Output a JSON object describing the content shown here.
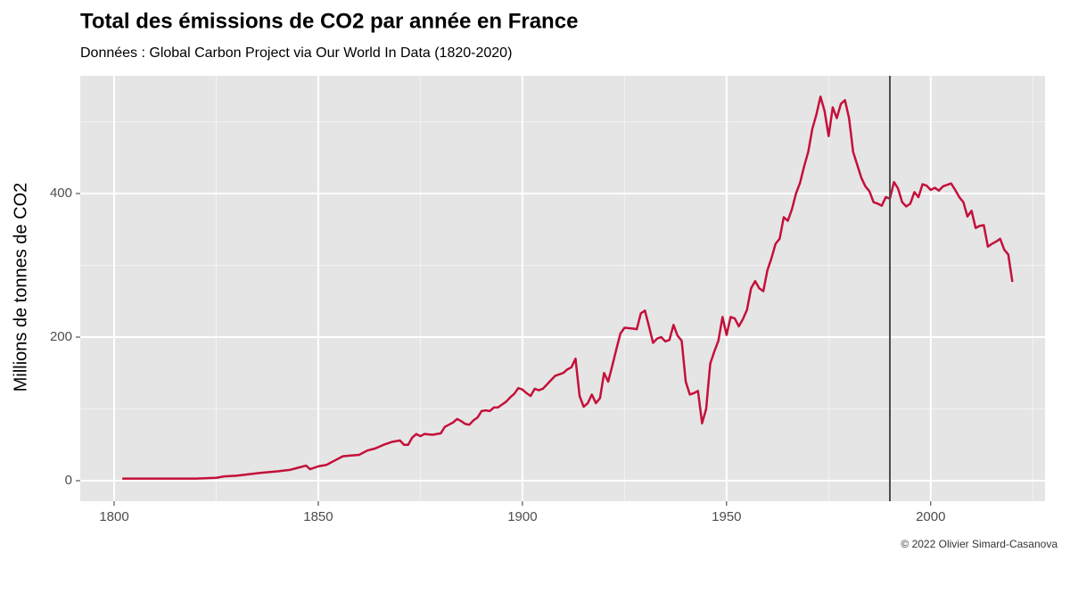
{
  "chart_data": {
    "type": "line",
    "title": "Total des émissions de CO2 par année en France",
    "subtitle": "Données : Global Carbon Project via Our World In Data (1820-2020)",
    "y_label": "Millions de tonnes de CO2",
    "caption": "© 2022 Olivier Simard-Casanova",
    "xlim": [
      1791.7,
      2028
    ],
    "ylim": [
      -28.6,
      564
    ],
    "xticks": [
      1800,
      1850,
      1900,
      1950,
      2000
    ],
    "yticks": [
      0,
      200,
      400
    ],
    "xminor": [
      1825,
      1875,
      1925,
      1975,
      2025
    ],
    "yminor": [
      100,
      300,
      500
    ],
    "grid": true,
    "vline": 1990,
    "vline_color": "#4d4d4d",
    "series": [
      {
        "color": "#c4103a",
        "x": [
          1802,
          1810,
          1815,
          1820,
          1825,
          1827,
          1830,
          1833,
          1836,
          1840,
          1843,
          1845,
          1847,
          1848,
          1850,
          1852,
          1854,
          1856,
          1858,
          1860,
          1862,
          1864,
          1866,
          1868,
          1870,
          1871,
          1872,
          1873,
          1874,
          1875,
          1876,
          1878,
          1880,
          1881,
          1882,
          1883,
          1884,
          1885,
          1886,
          1887,
          1888,
          1889,
          1890,
          1891,
          1892,
          1893,
          1894,
          1895,
          1896,
          1897,
          1898,
          1899,
          1900,
          1901,
          1902,
          1903,
          1904,
          1905,
          1907,
          1908,
          1910,
          1911,
          1912,
          1913,
          1914,
          1915,
          1916,
          1917,
          1918,
          1919,
          1920,
          1921,
          1922,
          1923,
          1924,
          1925,
          1927,
          1928,
          1929,
          1930,
          1931,
          1932,
          1933,
          1934,
          1935,
          1936,
          1937,
          1938,
          1939,
          1940,
          1941,
          1942,
          1943,
          1944,
          1945,
          1946,
          1947,
          1948,
          1949,
          1950,
          1951,
          1952,
          1953,
          1954,
          1955,
          1956,
          1957,
          1958,
          1959,
          1960,
          1961,
          1962,
          1963,
          1964,
          1965,
          1966,
          1967,
          1968,
          1969,
          1970,
          1971,
          1972,
          1973,
          1974,
          1975,
          1976,
          1977,
          1978,
          1979,
          1980,
          1981,
          1982,
          1983,
          1984,
          1985,
          1986,
          1987,
          1988,
          1989,
          1990,
          1991,
          1992,
          1993,
          1994,
          1995,
          1996,
          1997,
          1998,
          1999,
          2000,
          2001,
          2002,
          2003,
          2004,
          2005,
          2006,
          2007,
          2008,
          2009,
          2010,
          2011,
          2012,
          2013,
          2014,
          2015,
          2016,
          2017,
          2018,
          2019,
          2020
        ],
        "values": [
          3,
          3,
          3,
          3,
          4,
          6,
          7,
          9,
          11,
          13,
          15,
          18,
          21,
          16,
          20,
          22,
          28,
          34,
          35,
          36,
          42,
          45,
          50,
          54,
          56,
          50,
          50,
          60,
          65,
          62,
          65,
          64,
          66,
          75,
          78,
          81,
          86,
          83,
          79,
          78,
          84,
          88,
          97,
          98,
          97,
          102,
          102,
          106,
          110,
          116,
          121,
          129,
          127,
          122,
          118,
          128,
          126,
          128,
          140,
          146,
          150,
          155,
          158,
          170,
          118,
          103,
          108,
          120,
          108,
          115,
          150,
          138,
          160,
          183,
          205,
          213,
          212,
          211,
          233,
          237,
          215,
          192,
          198,
          200,
          194,
          196,
          217,
          202,
          195,
          138,
          120,
          122,
          125,
          80,
          100,
          163,
          180,
          195,
          228,
          203,
          228,
          226,
          215,
          225,
          238,
          268,
          278,
          268,
          264,
          293,
          310,
          330,
          337,
          367,
          362,
          378,
          400,
          415,
          438,
          458,
          490,
          510,
          535,
          515,
          480,
          520,
          505,
          525,
          530,
          505,
          458,
          440,
          422,
          410,
          403,
          388,
          386,
          383,
          395,
          393,
          416,
          407,
          388,
          382,
          386,
          402,
          395,
          413,
          411,
          405,
          408,
          404,
          410,
          412,
          414,
          405,
          395,
          388,
          368,
          376,
          352,
          355,
          356,
          326,
          330,
          333,
          337,
          322,
          315,
          277
        ]
      }
    ]
  }
}
